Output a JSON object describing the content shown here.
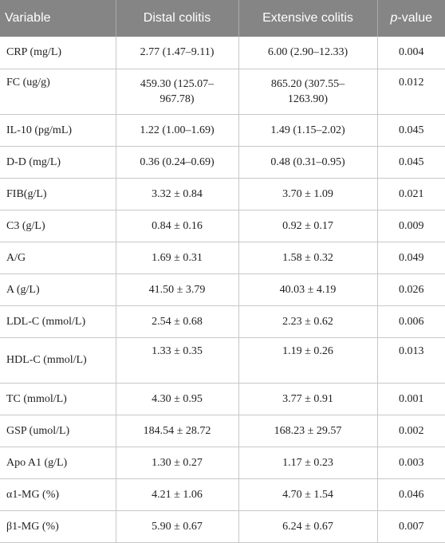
{
  "table": {
    "headers": {
      "variable": "Variable",
      "distal": "Distal colitis",
      "extensive": "Extensive colitis",
      "p_italic": "p",
      "p_rest": "-value"
    },
    "rows": [
      {
        "variable": "CRP (mg/L)",
        "distal": "2.77 (1.47–9.11)",
        "extensive": "6.00 (2.90–12.33)",
        "p": "0.004"
      },
      {
        "variable": "FC (ug/g)",
        "distal": "459.30 (125.07–967.78)",
        "extensive": "865.20 (307.55–1263.90)",
        "p": "0.012"
      },
      {
        "variable": "IL-10 (pg/mL)",
        "distal": "1.22 (1.00–1.69)",
        "extensive": "1.49 (1.15–2.02)",
        "p": "0.045"
      },
      {
        "variable": "D-D (mg/L)",
        "distal": "0.36 (0.24–0.69)",
        "extensive": "0.48 (0.31–0.95)",
        "p": "0.045"
      },
      {
        "variable": "FIB(g/L)",
        "distal": "3.32 ± 0.84",
        "extensive": "3.70 ± 1.09",
        "p": "0.021"
      },
      {
        "variable": "C3 (g/L)",
        "distal": "0.84 ± 0.16",
        "extensive": "0.92 ± 0.17",
        "p": "0.009"
      },
      {
        "variable": "A/G",
        "distal": "1.69 ± 0.31",
        "extensive": "1.58 ± 0.32",
        "p": "0.049"
      },
      {
        "variable": "A (g/L)",
        "distal": "41.50 ± 3.79",
        "extensive": "40.03 ± 4.19",
        "p": "0.026"
      },
      {
        "variable": "LDL-C (mmol/L)",
        "distal": "2.54 ± 0.68",
        "extensive": "2.23 ± 0.62",
        "p": "0.006"
      },
      {
        "variable": "HDL-C (mmol/L)",
        "distal": "1.33 ± 0.35",
        "extensive": "1.19 ± 0.26",
        "p": "0.013"
      },
      {
        "variable": "TC (mmol/L)",
        "distal": "4.30 ± 0.95",
        "extensive": "3.77 ± 0.91",
        "p": "0.001"
      },
      {
        "variable": "GSP (umol/L)",
        "distal": "184.54 ± 28.72",
        "extensive": "168.23 ± 29.57",
        "p": "0.002"
      },
      {
        "variable": "Apo A1 (g/L)",
        "distal": "1.30 ± 0.27",
        "extensive": "1.17 ± 0.23",
        "p": "0.003"
      },
      {
        "variable": "α1-MG (%)",
        "distal": "4.21 ± 1.06",
        "extensive": "4.70 ± 1.54",
        "p": "0.046"
      },
      {
        "variable": "β1-MG (%)",
        "distal": "5.90 ± 0.67",
        "extensive": "6.24 ± 0.67",
        "p": "0.007"
      }
    ]
  }
}
